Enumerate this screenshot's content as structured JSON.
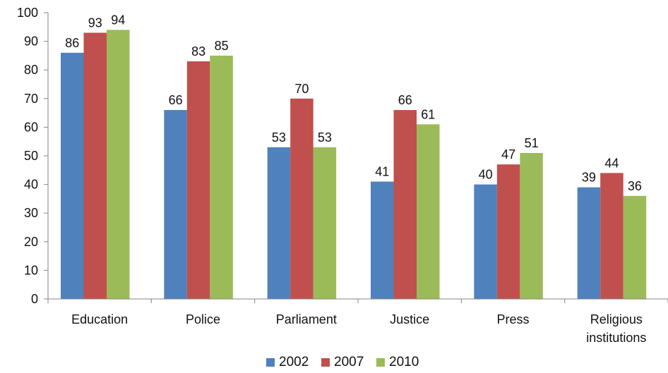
{
  "chart_data": {
    "type": "bar",
    "categories": [
      "Education",
      "Police",
      "Parliament",
      "Justice",
      "Press",
      "Religious institutions"
    ],
    "category_lines": [
      [
        "Education"
      ],
      [
        "Police"
      ],
      [
        "Parliament"
      ],
      [
        "Justice"
      ],
      [
        "Press"
      ],
      [
        "Religious",
        "institutions"
      ]
    ],
    "series": [
      {
        "name": "2002",
        "color": "#4F81BD",
        "values": [
          86,
          66,
          53,
          41,
          40,
          39
        ]
      },
      {
        "name": "2007",
        "color": "#C0504D",
        "values": [
          93,
          83,
          70,
          66,
          47,
          44
        ]
      },
      {
        "name": "2010",
        "color": "#9BBB59",
        "values": [
          94,
          85,
          53,
          61,
          51,
          36
        ]
      }
    ],
    "ylim": [
      0,
      100
    ],
    "yticks": [
      0,
      10,
      20,
      30,
      40,
      50,
      60,
      70,
      80,
      90,
      100
    ],
    "title": "",
    "xlabel": "",
    "ylabel": "",
    "grid": false,
    "data_labels": true,
    "legend_position": "bottom"
  }
}
